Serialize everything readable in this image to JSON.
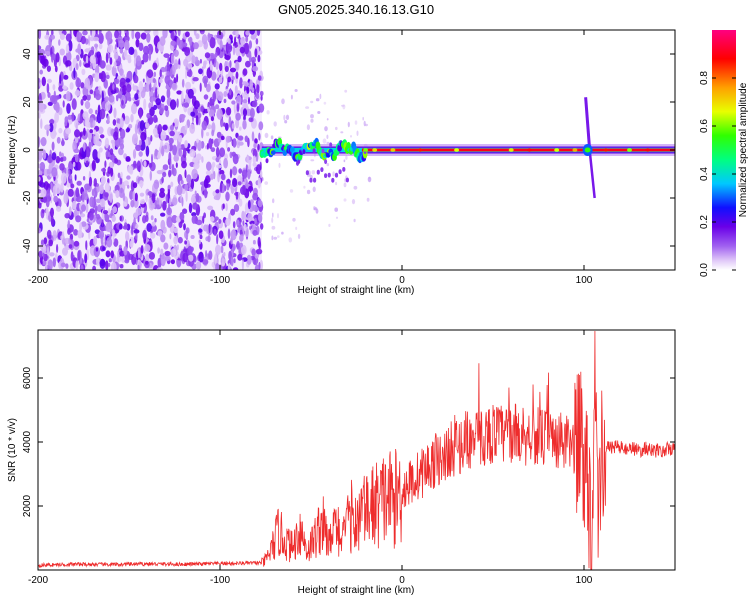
{
  "title": "GN05.2025.340.16.13.G10",
  "chart_data": [
    {
      "type": "heatmap",
      "title": "GN05.2025.340.16.13.G10",
      "xlabel": "Height of straight line (km)",
      "ylabel": "Frequency (Hz)",
      "xlim": [
        -200,
        150
      ],
      "ylim": [
        -50,
        50
      ],
      "x_ticks": [
        -200,
        -100,
        0,
        100
      ],
      "y_ticks": [
        -40,
        -20,
        0,
        20,
        40
      ],
      "colorbar": {
        "label": "Normalized spectral amplitude",
        "range": [
          0.0,
          1.0
        ],
        "ticks": [
          0.0,
          0.2,
          0.4,
          0.6,
          0.8
        ],
        "tick_labels": [
          "0.0",
          "0.2",
          "0.4",
          "0.6",
          "0.8"
        ],
        "colormap": "rainbow (white-violet-blue-cyan-green-yellow-red-magenta)"
      },
      "features": {
        "noise_region_x": [
          -200,
          -77
        ],
        "carrier_frequency_hz": 0,
        "carrier_start_x": -77,
        "carrier_peak_amplitude": 1.0,
        "spike_x": 102,
        "spike_frequency_range_hz": [
          -20,
          22
        ]
      }
    },
    {
      "type": "line",
      "xlabel": "Height of straight line (km)",
      "ylabel": "SNR (10 * v/v)",
      "xlim": [
        -200,
        150
      ],
      "ylim": [
        0,
        7500
      ],
      "x_ticks": [
        -200,
        -100,
        0,
        100
      ],
      "y_ticks": [
        2000,
        4000,
        6000
      ],
      "series": [
        {
          "name": "SNR",
          "color": "#ee2c2c",
          "x": [
            -200,
            -180,
            -160,
            -140,
            -120,
            -100,
            -90,
            -80,
            -76,
            -72,
            -68,
            -64,
            -60,
            -56,
            -52,
            -48,
            -44,
            -40,
            -36,
            -32,
            -28,
            -24,
            -20,
            -16,
            -12,
            -8,
            -4,
            0,
            4,
            8,
            12,
            16,
            20,
            24,
            28,
            32,
            36,
            40,
            44,
            48,
            52,
            56,
            60,
            64,
            68,
            72,
            76,
            80,
            84,
            88,
            92,
            96,
            100,
            102,
            104,
            106,
            108,
            110,
            114,
            118,
            122,
            126,
            130,
            134,
            138,
            142,
            146,
            150
          ],
          "values": [
            150,
            180,
            170,
            190,
            180,
            200,
            210,
            220,
            230,
            600,
            1200,
            900,
            700,
            1300,
            600,
            1000,
            1500,
            800,
            1400,
            1000,
            1700,
            1600,
            1800,
            2000,
            2100,
            2300,
            2200,
            2500,
            2700,
            2900,
            3100,
            3300,
            3500,
            3600,
            3800,
            3900,
            4100,
            4000,
            4150,
            4250,
            4300,
            4200,
            4300,
            4250,
            4200,
            4300,
            4100,
            4150,
            4050,
            4000,
            3900,
            3850,
            3800,
            3200,
            1000,
            6500,
            2000,
            3900,
            3800,
            3900,
            3750,
            3850,
            3700,
            3800,
            3750,
            3700,
            3780,
            3750
          ]
        }
      ]
    }
  ]
}
